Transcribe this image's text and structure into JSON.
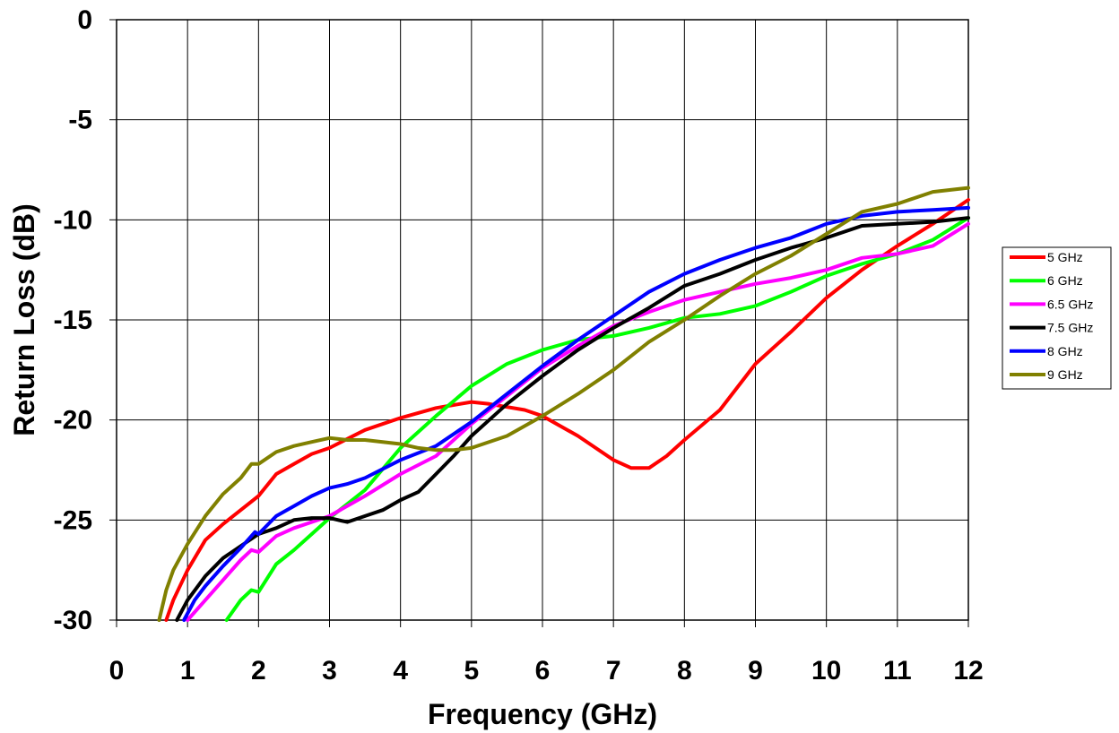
{
  "chart_data": {
    "type": "line",
    "title": "",
    "xlabel": "Frequency (GHz)",
    "ylabel": "Return Loss (dB)",
    "xlim": [
      0,
      12
    ],
    "ylim": [
      -30,
      0
    ],
    "x_ticks": [
      "0",
      "1",
      "2",
      "3",
      "4",
      "5",
      "6",
      "7",
      "8",
      "9",
      "10",
      "11",
      "12"
    ],
    "y_ticks": [
      "0",
      "-5",
      "-10",
      "-15",
      "-20",
      "-25",
      "-30"
    ],
    "grid": true,
    "legend_position": "right",
    "series": [
      {
        "name": "5 GHz",
        "color": "#ff0000",
        "x": [
          0.7,
          0.8,
          1.0,
          1.25,
          1.5,
          1.75,
          2.0,
          2.25,
          2.5,
          2.75,
          3.0,
          3.5,
          4.0,
          4.5,
          5.0,
          5.25,
          5.75,
          6.0,
          6.5,
          7.0,
          7.25,
          7.5,
          7.75,
          8.0,
          8.5,
          9.0,
          9.5,
          10.0,
          10.5,
          11.0,
          11.5,
          12.0
        ],
        "y": [
          -30,
          -29.0,
          -27.5,
          -26.0,
          -25.2,
          -24.5,
          -23.8,
          -22.7,
          -22.2,
          -21.7,
          -21.4,
          -20.5,
          -19.9,
          -19.4,
          -19.1,
          -19.2,
          -19.5,
          -19.8,
          -20.8,
          -22.0,
          -22.4,
          -22.4,
          -21.8,
          -21.0,
          -19.5,
          -17.2,
          -15.6,
          -13.9,
          -12.5,
          -11.3,
          -10.2,
          -9.0
        ]
      },
      {
        "name": "6 GHz",
        "color": "#00ff00",
        "x": [
          1.55,
          1.75,
          1.9,
          2.0,
          2.25,
          2.5,
          2.75,
          3.0,
          3.5,
          4.0,
          4.5,
          5.0,
          5.5,
          6.0,
          6.5,
          7.0,
          7.5,
          8.0,
          8.5,
          9.0,
          9.5,
          10.0,
          10.5,
          11.0,
          11.5,
          12.0
        ],
        "y": [
          -30,
          -29.0,
          -28.5,
          -28.6,
          -27.2,
          -26.5,
          -25.7,
          -24.9,
          -23.5,
          -21.4,
          -19.8,
          -18.3,
          -17.2,
          -16.5,
          -16.0,
          -15.8,
          -15.4,
          -14.9,
          -14.7,
          -14.3,
          -13.6,
          -12.8,
          -12.2,
          -11.7,
          -11.0,
          -9.9
        ]
      },
      {
        "name": "6.5 GHz",
        "color": "#ff00ff",
        "x": [
          1.0,
          1.25,
          1.5,
          1.75,
          1.9,
          2.0,
          2.25,
          2.5,
          2.75,
          3.0,
          3.5,
          4.0,
          4.5,
          5.0,
          5.5,
          6.0,
          6.5,
          7.0,
          7.5,
          8.0,
          8.5,
          9.0,
          9.5,
          10.0,
          10.5,
          11.0,
          11.5,
          12.0
        ],
        "y": [
          -30,
          -29.0,
          -28.0,
          -27.0,
          -26.5,
          -26.6,
          -25.8,
          -25.4,
          -25.1,
          -24.8,
          -23.8,
          -22.7,
          -21.8,
          -20.2,
          -18.8,
          -17.4,
          -16.3,
          -15.3,
          -14.6,
          -14.0,
          -13.6,
          -13.2,
          -12.9,
          -12.5,
          -11.9,
          -11.7,
          -11.3,
          -10.2
        ]
      },
      {
        "name": "7.5 GHz",
        "color": "#000000",
        "x": [
          0.85,
          1.0,
          1.25,
          1.5,
          1.75,
          2.0,
          2.25,
          2.5,
          2.75,
          3.0,
          3.25,
          3.5,
          3.75,
          4.0,
          4.25,
          4.5,
          4.75,
          5.0,
          5.25,
          5.5,
          6.0,
          6.5,
          7.0,
          7.5,
          8.0,
          8.5,
          9.0,
          9.5,
          10.0,
          10.5,
          11.0,
          11.5,
          12.0
        ],
        "y": [
          -30,
          -29.0,
          -27.8,
          -26.9,
          -26.3,
          -25.7,
          -25.4,
          -25.0,
          -24.9,
          -24.9,
          -25.1,
          -24.8,
          -24.5,
          -24.0,
          -23.6,
          -22.7,
          -21.8,
          -20.8,
          -20.0,
          -19.2,
          -17.8,
          -16.5,
          -15.4,
          -14.4,
          -13.3,
          -12.7,
          -12.0,
          -11.4,
          -10.9,
          -10.3,
          -10.2,
          -10.1,
          -9.9
        ]
      },
      {
        "name": "8 GHz",
        "color": "#0000ff",
        "x": [
          0.95,
          1.1,
          1.25,
          1.5,
          1.75,
          1.95,
          2.0,
          2.25,
          2.5,
          2.75,
          3.0,
          3.25,
          3.5,
          4.0,
          4.5,
          5.0,
          5.5,
          6.0,
          6.5,
          7.0,
          7.5,
          8.0,
          8.5,
          9.0,
          9.5,
          10.0,
          10.5,
          11.0,
          11.5,
          12.0
        ],
        "y": [
          -30,
          -29.0,
          -28.3,
          -27.3,
          -26.4,
          -25.6,
          -25.7,
          -24.8,
          -24.3,
          -23.8,
          -23.4,
          -23.2,
          -22.9,
          -22.0,
          -21.3,
          -20.1,
          -18.7,
          -17.3,
          -16.0,
          -14.8,
          -13.6,
          -12.7,
          -12.0,
          -11.4,
          -10.9,
          -10.2,
          -9.8,
          -9.6,
          -9.5,
          -9.4
        ]
      },
      {
        "name": "9 GHz",
        "color": "#808000",
        "x": [
          0.6,
          0.7,
          0.8,
          1.0,
          1.25,
          1.5,
          1.75,
          1.9,
          2.0,
          2.25,
          2.5,
          2.75,
          3.0,
          3.25,
          3.5,
          3.75,
          4.0,
          4.25,
          4.5,
          4.75,
          5.0,
          5.5,
          6.0,
          6.5,
          7.0,
          7.5,
          8.0,
          8.5,
          9.0,
          9.5,
          10.0,
          10.5,
          11.0,
          11.5,
          12.0
        ],
        "y": [
          -30,
          -28.5,
          -27.5,
          -26.2,
          -24.8,
          -23.7,
          -22.9,
          -22.2,
          -22.2,
          -21.6,
          -21.3,
          -21.1,
          -20.9,
          -21.0,
          -21.0,
          -21.1,
          -21.2,
          -21.4,
          -21.5,
          -21.5,
          -21.4,
          -20.8,
          -19.8,
          -18.7,
          -17.5,
          -16.1,
          -15.0,
          -13.8,
          -12.7,
          -11.8,
          -10.7,
          -9.6,
          -9.2,
          -8.6,
          -8.4
        ]
      }
    ]
  }
}
